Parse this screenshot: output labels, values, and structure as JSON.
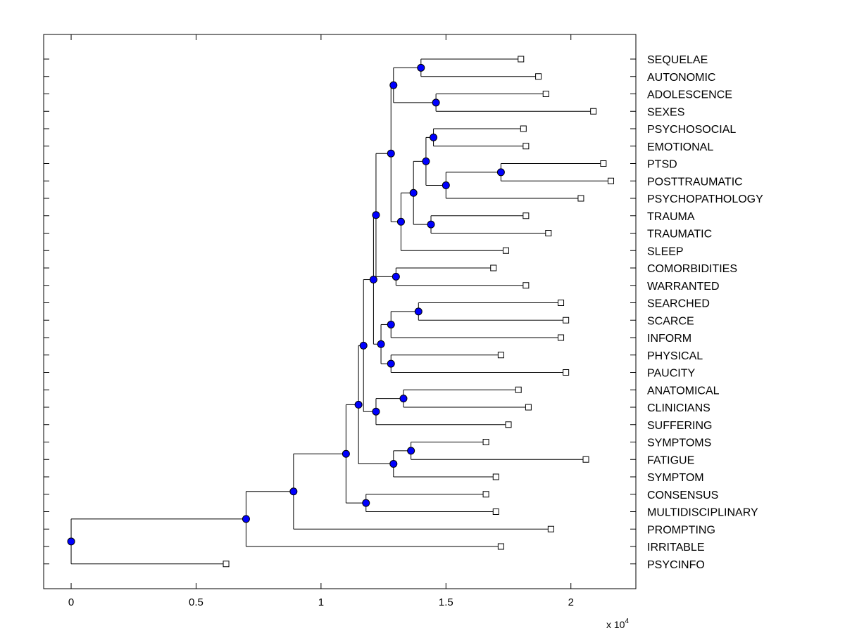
{
  "chart_data": {
    "type": "dendrogram",
    "orientation": "horizontal",
    "colors": {
      "node": "#0000ff",
      "leaf": "#ffffff",
      "line": "#000000"
    },
    "x_axis": {
      "ticks": [
        0,
        5000,
        10000,
        15000,
        20000
      ],
      "tick_labels": [
        "0",
        "0.5",
        "1",
        "1.5",
        "2"
      ],
      "xlim": [
        -1100,
        22600
      ],
      "scale_base": "x 10",
      "scale_exp": "4"
    },
    "leaves": [
      {
        "label": "SEQUELAE",
        "x": 18000
      },
      {
        "label": "AUTONOMIC",
        "x": 18700
      },
      {
        "label": "ADOLESCENCE",
        "x": 19000
      },
      {
        "label": "SEXES",
        "x": 20900
      },
      {
        "label": "PSYCHOSOCIAL",
        "x": 18100
      },
      {
        "label": "EMOTIONAL",
        "x": 18200
      },
      {
        "label": "PTSD",
        "x": 21300
      },
      {
        "label": "POSTTRAUMATIC",
        "x": 21600
      },
      {
        "label": "PSYCHOPATHOLOGY",
        "x": 20400
      },
      {
        "label": "TRAUMA",
        "x": 18200
      },
      {
        "label": "TRAUMATIC",
        "x": 19100
      },
      {
        "label": "SLEEP",
        "x": 17400
      },
      {
        "label": "COMORBIDITIES",
        "x": 16900
      },
      {
        "label": "WARRANTED",
        "x": 18200
      },
      {
        "label": "SEARCHED",
        "x": 19600
      },
      {
        "label": "SCARCE",
        "x": 19800
      },
      {
        "label": "INFORM",
        "x": 19600
      },
      {
        "label": "PHYSICAL",
        "x": 17200
      },
      {
        "label": "PAUCITY",
        "x": 19800
      },
      {
        "label": "ANATOMICAL",
        "x": 17900
      },
      {
        "label": "CLINICIANS",
        "x": 18300
      },
      {
        "label": "SUFFERING",
        "x": 17500
      },
      {
        "label": "SYMPTOMS",
        "x": 16600
      },
      {
        "label": "FATIGUE",
        "x": 20600
      },
      {
        "label": "SYMPTOM",
        "x": 17000
      },
      {
        "label": "CONSENSUS",
        "x": 16600
      },
      {
        "label": "MULTIDISCIPLINARY",
        "x": 17000
      },
      {
        "label": "PROMPTING",
        "x": 19200
      },
      {
        "label": "IRRITABLE",
        "x": 17200
      },
      {
        "label": "PSYCINFO",
        "x": 6200
      }
    ],
    "nodes": [
      {
        "id": "n1",
        "x": 14000,
        "children": [
          "SEQUELAE",
          "AUTONOMIC"
        ]
      },
      {
        "id": "n2",
        "x": 14600,
        "children": [
          "ADOLESCENCE",
          "SEXES"
        ]
      },
      {
        "id": "n3",
        "x": 12900,
        "children": [
          "n1",
          "n2"
        ]
      },
      {
        "id": "n4",
        "x": 14500,
        "children": [
          "PSYCHOSOCIAL",
          "EMOTIONAL"
        ]
      },
      {
        "id": "n5",
        "x": 17200,
        "children": [
          "PTSD",
          "POSTTRAUMATIC"
        ]
      },
      {
        "id": "n6",
        "x": 15000,
        "children": [
          "n5",
          "PSYCHOPATHOLOGY"
        ]
      },
      {
        "id": "n7",
        "x": 14200,
        "children": [
          "n4",
          "n6"
        ]
      },
      {
        "id": "n8",
        "x": 14400,
        "children": [
          "TRAUMA",
          "TRAUMATIC"
        ]
      },
      {
        "id": "n9",
        "x": 13700,
        "children": [
          "n7",
          "n8"
        ]
      },
      {
        "id": "n10",
        "x": 13200,
        "children": [
          "n9",
          "SLEEP"
        ]
      },
      {
        "id": "n11",
        "x": 12800,
        "children": [
          "n3",
          "n10"
        ]
      },
      {
        "id": "n12",
        "x": 13000,
        "children": [
          "COMORBIDITIES",
          "WARRANTED"
        ]
      },
      {
        "id": "n13",
        "x": 12200,
        "children": [
          "n11",
          "n12"
        ]
      },
      {
        "id": "n14",
        "x": 13900,
        "children": [
          "SEARCHED",
          "SCARCE"
        ]
      },
      {
        "id": "n15",
        "x": 12800,
        "children": [
          "n14",
          "INFORM"
        ]
      },
      {
        "id": "n16",
        "x": 12800,
        "children": [
          "PHYSICAL",
          "PAUCITY"
        ]
      },
      {
        "id": "n17",
        "x": 12400,
        "children": [
          "n15",
          "n16"
        ]
      },
      {
        "id": "n18",
        "x": 12100,
        "children": [
          "n13",
          "n17"
        ]
      },
      {
        "id": "n19",
        "x": 13300,
        "children": [
          "ANATOMICAL",
          "CLINICIANS"
        ]
      },
      {
        "id": "n20",
        "x": 12200,
        "children": [
          "n19",
          "SUFFERING"
        ]
      },
      {
        "id": "n21",
        "x": 11700,
        "children": [
          "n18",
          "n20"
        ]
      },
      {
        "id": "n22",
        "x": 13600,
        "children": [
          "SYMPTOMS",
          "FATIGUE"
        ]
      },
      {
        "id": "n23",
        "x": 12900,
        "children": [
          "n22",
          "SYMPTOM"
        ]
      },
      {
        "id": "n24",
        "x": 11500,
        "children": [
          "n21",
          "n23"
        ]
      },
      {
        "id": "n25",
        "x": 11800,
        "children": [
          "CONSENSUS",
          "MULTIDISCIPLINARY"
        ]
      },
      {
        "id": "n26",
        "x": 11000,
        "children": [
          "n24",
          "n25"
        ]
      },
      {
        "id": "n27",
        "x": 8900,
        "children": [
          "n26",
          "PROMPTING"
        ]
      },
      {
        "id": "n28",
        "x": 7000,
        "children": [
          "n27",
          "IRRITABLE"
        ]
      },
      {
        "id": "n29",
        "x": 0,
        "children": [
          "n28",
          "PSYCINFO"
        ]
      }
    ]
  }
}
